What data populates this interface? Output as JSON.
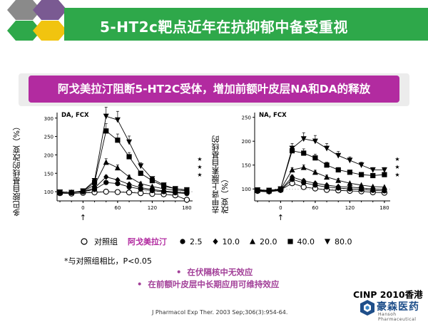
{
  "title": "5-HT2c靶点近年在抗抑郁中备受重视",
  "banner": "阿戈美拉汀阻断5-HT2C受体，增加前额叶皮层NA和DA的释放",
  "chart_data": [
    {
      "type": "line",
      "title": "DA, FCX",
      "ylabel": "多巴胺自基线的改变（%）",
      "xlim": [
        -45,
        190
      ],
      "ylim": [
        75,
        315
      ],
      "xticks": [
        0,
        60,
        120,
        180
      ],
      "yticks": [
        100,
        150,
        200,
        250,
        300
      ],
      "annotation": "↑",
      "significance": "★ ★ ★",
      "x": [
        -40,
        -20,
        0,
        20,
        40,
        60,
        80,
        100,
        120,
        140,
        160,
        180
      ],
      "series": [
        {
          "name": "对照组",
          "marker": "circle-open",
          "values": [
            96,
            95,
            97,
            98,
            100,
            99,
            98,
            96,
            94,
            93,
            90,
            78
          ]
        },
        {
          "name": "2.5",
          "marker": "circle",
          "values": [
            98,
            98,
            100,
            106,
            125,
            122,
            113,
            107,
            103,
            100,
            97,
            95
          ]
        },
        {
          "name": "10.0",
          "marker": "diamond",
          "values": [
            98,
            98,
            100,
            110,
            140,
            132,
            120,
            111,
            106,
            102,
            99,
            97
          ]
        },
        {
          "name": "20.0",
          "marker": "triangle-up",
          "values": [
            98,
            98,
            101,
            118,
            180,
            165,
            140,
            122,
            114,
            108,
            104,
            103
          ]
        },
        {
          "name": "40.0",
          "marker": "square",
          "values": [
            99,
            98,
            102,
            125,
            265,
            240,
            195,
            150,
            130,
            115,
            108,
            105
          ]
        },
        {
          "name": "80.0",
          "marker": "triangle-down",
          "values": [
            99,
            98,
            102,
            130,
            305,
            295,
            235,
            170,
            135,
            118,
            108,
            105
          ]
        }
      ]
    },
    {
      "type": "line",
      "title": "NA, FCX",
      "ylabel": "去甲肾上腺素自基线的改变（%）",
      "xlim": [
        -45,
        190
      ],
      "ylim": [
        75,
        260
      ],
      "xticks": [
        0,
        60,
        120,
        180
      ],
      "yticks": [
        100,
        150,
        200,
        250
      ],
      "annotation": "↑",
      "significance": "★ ★ ★",
      "x": [
        -40,
        -20,
        0,
        20,
        40,
        60,
        80,
        100,
        120,
        140,
        160,
        180
      ],
      "series": [
        {
          "name": "对照组",
          "marker": "circle-open",
          "values": [
            97,
            96,
            98,
            112,
            104,
            101,
            98,
            97,
            96,
            95,
            93,
            92
          ]
        },
        {
          "name": "2.5",
          "marker": "circle",
          "values": [
            95,
            94,
            97,
            120,
            113,
            108,
            104,
            102,
            100,
            99,
            97,
            96
          ]
        },
        {
          "name": "10.0",
          "marker": "diamond",
          "values": [
            96,
            95,
            98,
            125,
            117,
            112,
            108,
            105,
            104,
            102,
            100,
            99
          ]
        },
        {
          "name": "20.0",
          "marker": "triangle-up",
          "values": [
            97,
            96,
            99,
            140,
            145,
            135,
            125,
            118,
            112,
            108,
            105,
            104
          ]
        },
        {
          "name": "40.0",
          "marker": "square",
          "values": [
            98,
            97,
            100,
            180,
            175,
            165,
            150,
            140,
            135,
            130,
            128,
            130
          ]
        },
        {
          "name": "80.0",
          "marker": "triangle-down",
          "values": [
            98,
            97,
            100,
            185,
            205,
            200,
            185,
            170,
            160,
            150,
            140,
            140
          ]
        }
      ]
    }
  ],
  "legend": {
    "control": "对照组",
    "drug": "阿戈美拉汀",
    "doses": [
      {
        "label": "2.5",
        "marker": "circle"
      },
      {
        "label": "10.0",
        "marker": "diamond"
      },
      {
        "label": "20.0",
        "marker": "triangle-up"
      },
      {
        "label": "40.0",
        "marker": "square"
      },
      {
        "label": "80.0",
        "marker": "triangle-down"
      }
    ]
  },
  "note": "*与对照组相比，P<0.05",
  "bullets": [
    "在伏隔核中无效应",
    "在前额叶皮层中长期应用可维持效应"
  ],
  "footer_left": "CINP 2010香港",
  "reference": "J Pharmacol Exp Ther. 2003 Sep;306(3):954-64.",
  "logo": {
    "cn": "豪森医药",
    "en": "Hansoh Pharmaceutical"
  },
  "colors": {
    "title_bar": "#2ea84a",
    "banner": "#b22ba0",
    "hex_gray": "#8c8c8c",
    "hex_purple": "#7a5a92",
    "hex_gold": "#f1c40f",
    "hex_green": "#2ea84a"
  }
}
